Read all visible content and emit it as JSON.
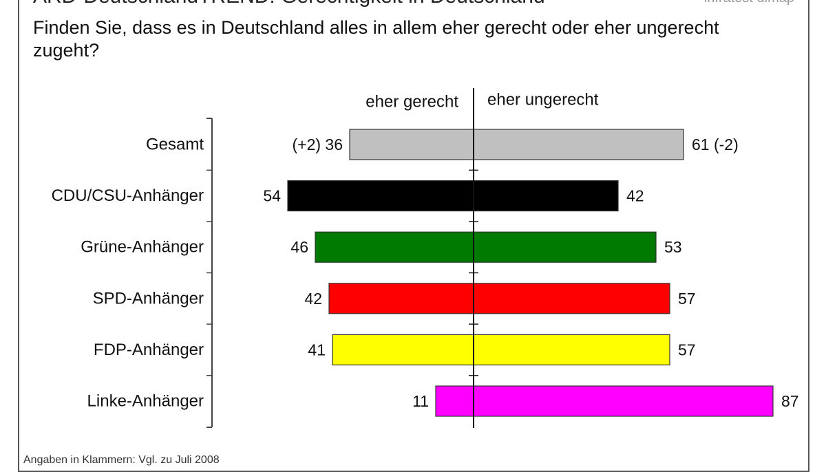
{
  "header": {
    "title": "ARD-DeutschlandTREND: Gerechtigkeit in Deutschland",
    "brand": "infratest dimap"
  },
  "question": "Finden Sie, dass es in Deutschland alles in allem eher gerecht oder eher ungerecht zugeht?",
  "footnote": "Angaben in Klammern: Vgl. zu Juli 2008",
  "chart_data": {
    "type": "bar",
    "orientation": "horizontal-diverging",
    "categories": [
      "Gesamt",
      "CDU/CSU-Anhänger",
      "Grüne-Anhänger",
      "SPD-Anhänger",
      "FDP-Anhänger",
      "Linke-Anhänger"
    ],
    "series": [
      {
        "name": "eher gerecht",
        "values": [
          36,
          54,
          46,
          42,
          41,
          11
        ],
        "changes": [
          "(+2)",
          "",
          "",
          "",
          "",
          ""
        ]
      },
      {
        "name": "eher ungerecht",
        "values": [
          61,
          42,
          53,
          57,
          57,
          87
        ],
        "changes": [
          "(-2)",
          "",
          "",
          "",
          "",
          ""
        ]
      }
    ],
    "bar_colors": [
      "#c0c0c0",
      "#000000",
      "#007a00",
      "#ff0000",
      "#ffff00",
      "#ff00ff"
    ],
    "xlim": [
      -100,
      100
    ],
    "legend_placement": "top-center",
    "grid": false
  }
}
